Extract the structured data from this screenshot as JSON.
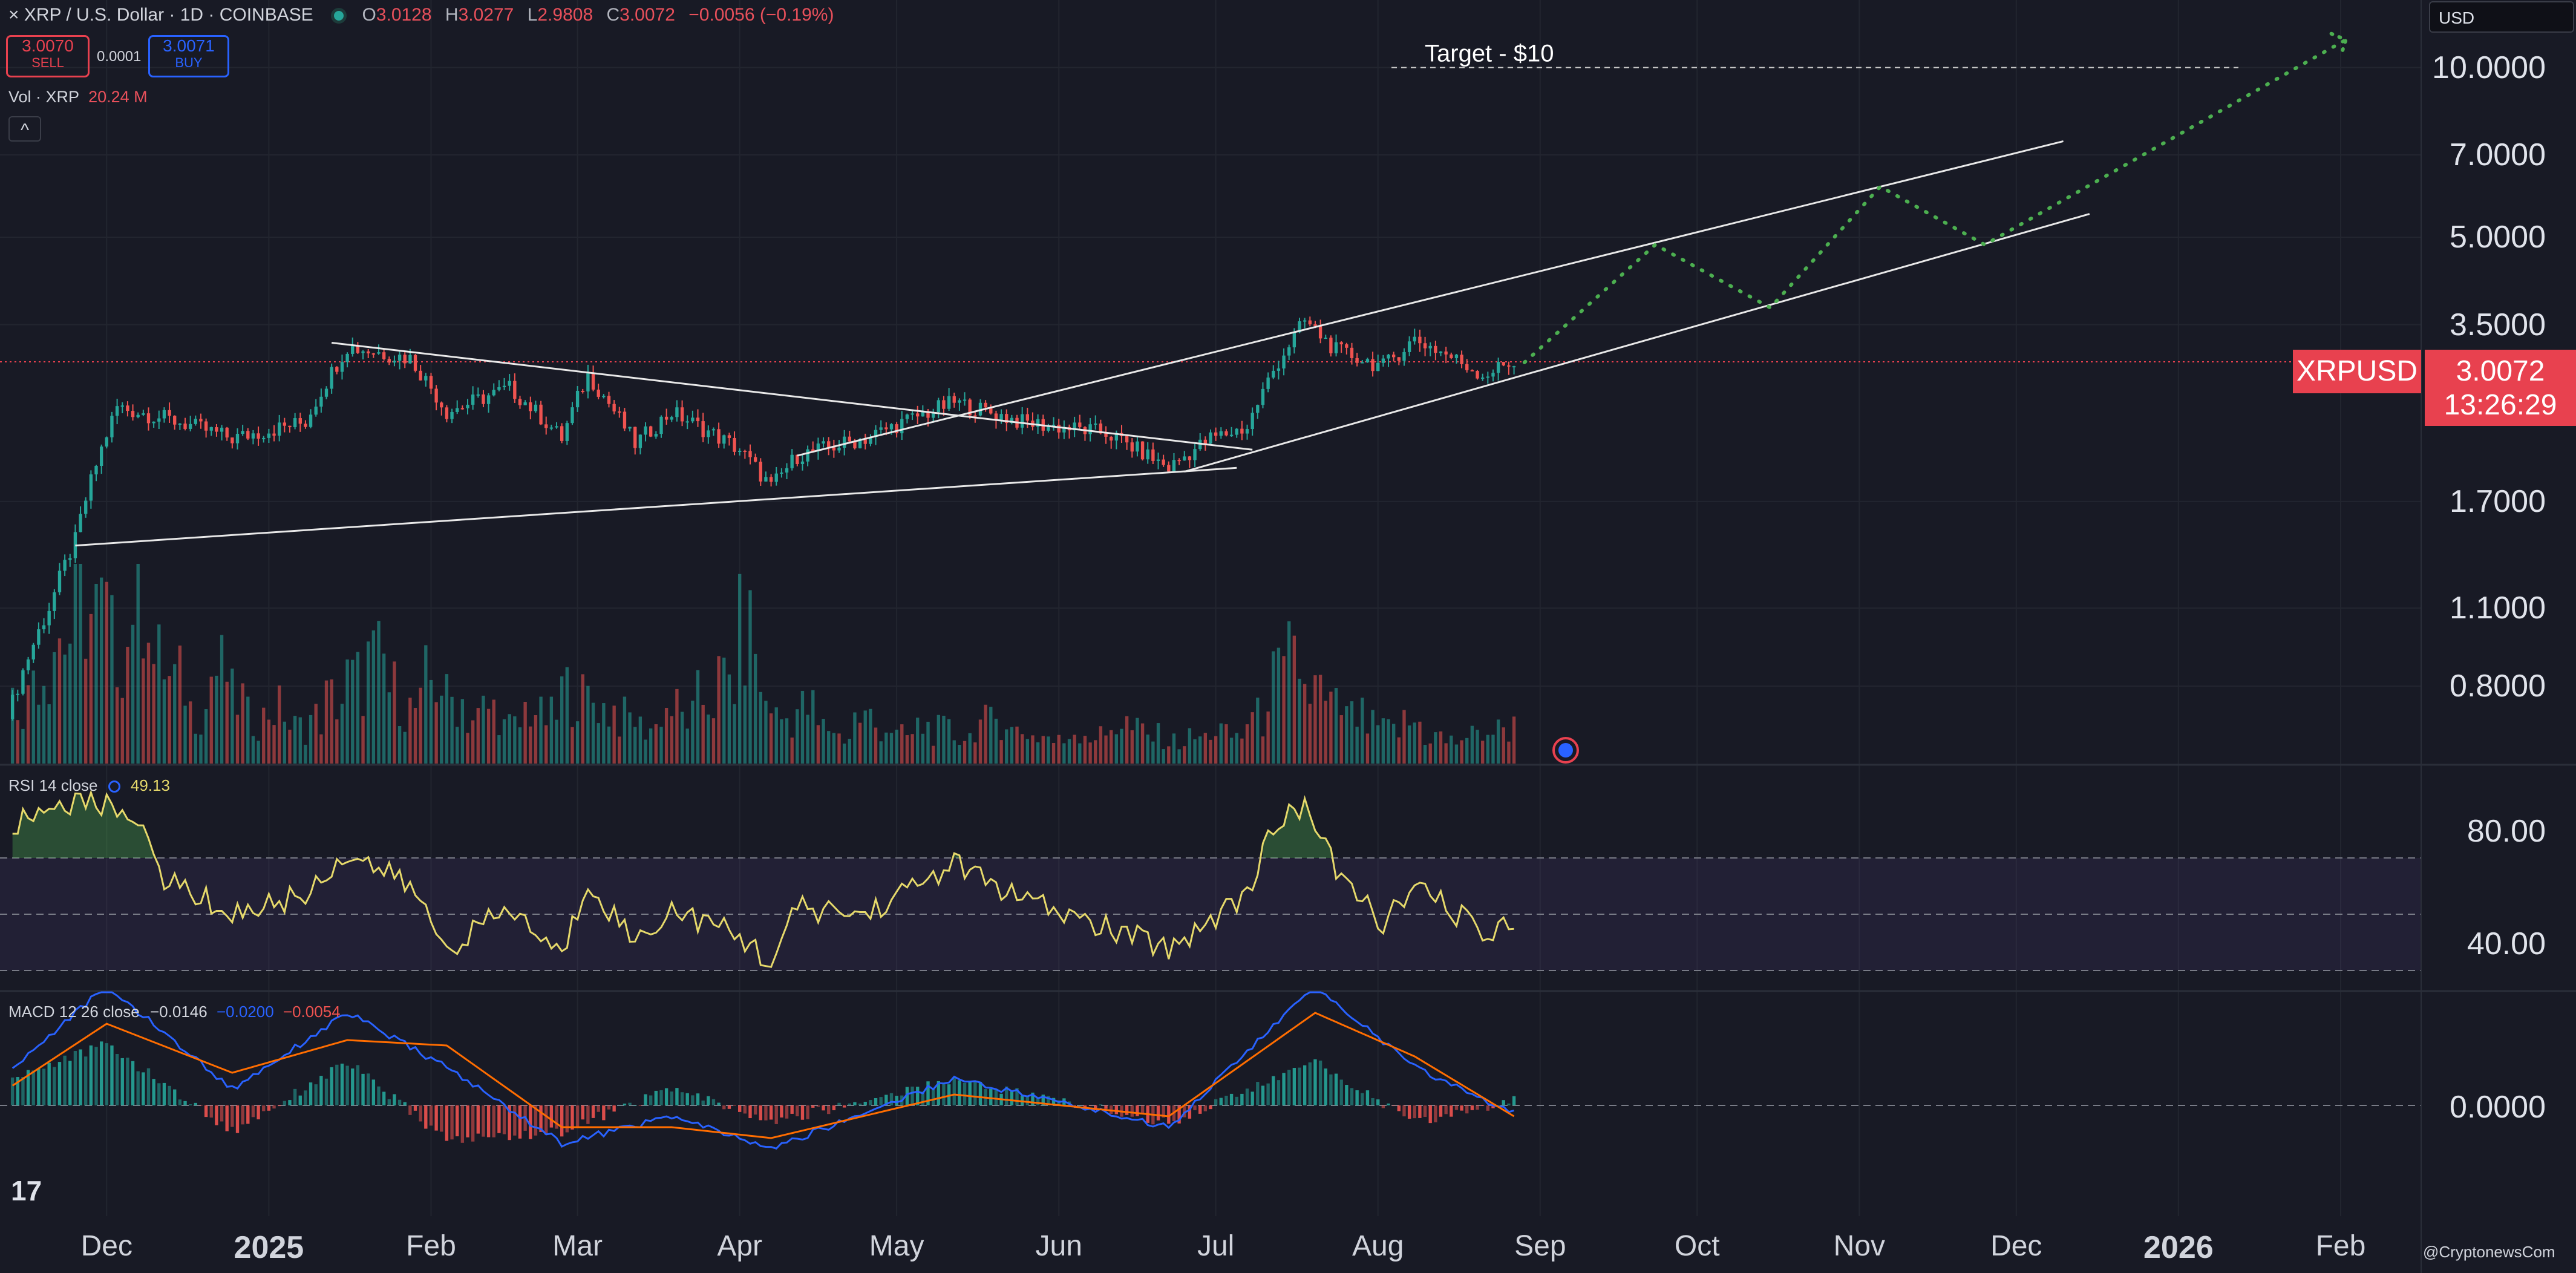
{
  "header": {
    "close_glyph": "×",
    "symbol_title": "XRP / U.S. Dollar · 1D · COINBASE",
    "ohlc": [
      {
        "k": "O",
        "v": "3.0128"
      },
      {
        "k": "H",
        "v": "3.0277"
      },
      {
        "k": "L",
        "v": "2.9808"
      },
      {
        "k": "C",
        "v": "3.0072"
      }
    ],
    "change": "−0.0056 (−0.19%)",
    "sell_price": "3.0070",
    "sell_label": "SELL",
    "spread": "0.0001",
    "buy_price": "3.0071",
    "buy_label": "BUY",
    "vol_label": "Vol · XRP",
    "vol_value": "20.24 M",
    "collapse_glyph": "^",
    "currency": "USD"
  },
  "price_axis": {
    "ticks": [
      "10.0000",
      "7.0000",
      "5.0000",
      "3.5000",
      "1.7000",
      "1.1000",
      "0.8000"
    ],
    "scale": "log",
    "last_symbol": "XRPUSD",
    "last_price": "3.0072",
    "countdown": "13:26:29"
  },
  "time_axis": {
    "ticks": [
      "Dec",
      "2025",
      "Feb",
      "Mar",
      "Apr",
      "May",
      "Jun",
      "Jul",
      "Aug",
      "Sep",
      "Oct",
      "Nov",
      "Dec",
      "2026",
      "Feb"
    ]
  },
  "rsi": {
    "label": "RSI 14 close",
    "value": "49.13",
    "ticks": [
      "80.00",
      "40.00"
    ],
    "upper_band": 70,
    "middle": 50,
    "lower_band": 30
  },
  "macd": {
    "label": "MACD 12 26 close",
    "macd_value": "−0.0146",
    "signal_value": "−0.0200",
    "hist_value": "−0.0054",
    "ticks": [
      "0.0000"
    ]
  },
  "annotation": {
    "target_text": "Target - $10",
    "target_price": 10
  },
  "watermark": "@CryptonewsCom",
  "logo_text": "17",
  "colors": {
    "background": "#181a25",
    "up": "#26a69a",
    "down": "#ef5350",
    "rsi_line": "#e6d96b",
    "macd_line": "#2962ff",
    "signal_line": "#ff6d00",
    "projection": "#4caf50",
    "trendline": "#e8e8e8",
    "last_price_tag": "#e8414f"
  },
  "chart_data": {
    "type": "candlestick",
    "title": "XRP / U.S. Dollar · 1D · COINBASE",
    "y_scale": "log",
    "ylim": [
      0.7,
      11.5
    ],
    "x_range": [
      "2024-11-12",
      "2026-02-15"
    ],
    "key_points": [
      {
        "date": "2024-11-12",
        "close": 0.7
      },
      {
        "date": "2024-11-20",
        "close": 1.1
      },
      {
        "date": "2024-11-25",
        "close": 1.45
      },
      {
        "date": "2024-12-03",
        "close": 2.5
      },
      {
        "date": "2024-12-15",
        "close": 2.35
      },
      {
        "date": "2024-12-25",
        "close": 2.2
      },
      {
        "date": "2025-01-08",
        "close": 2.35
      },
      {
        "date": "2025-01-16",
        "close": 3.2
      },
      {
        "date": "2025-01-28",
        "close": 3.05
      },
      {
        "date": "2025-02-04",
        "close": 2.45
      },
      {
        "date": "2025-02-16",
        "close": 2.7
      },
      {
        "date": "2025-02-26",
        "close": 2.2
      },
      {
        "date": "2025-03-03",
        "close": 2.85
      },
      {
        "date": "2025-03-12",
        "close": 2.15
      },
      {
        "date": "2025-03-19",
        "close": 2.45
      },
      {
        "date": "2025-04-01",
        "close": 2.1
      },
      {
        "date": "2025-04-07",
        "close": 1.8
      },
      {
        "date": "2025-04-12",
        "close": 2.05
      },
      {
        "date": "2025-04-25",
        "close": 2.2
      },
      {
        "date": "2025-05-12",
        "close": 2.55
      },
      {
        "date": "2025-05-25",
        "close": 2.35
      },
      {
        "date": "2025-06-10",
        "close": 2.25
      },
      {
        "date": "2025-06-22",
        "close": 1.95
      },
      {
        "date": "2025-06-30",
        "close": 2.2
      },
      {
        "date": "2025-07-07",
        "close": 2.3
      },
      {
        "date": "2025-07-12",
        "close": 2.9
      },
      {
        "date": "2025-07-18",
        "close": 3.55
      },
      {
        "date": "2025-07-24",
        "close": 3.15
      },
      {
        "date": "2025-08-02",
        "close": 2.95
      },
      {
        "date": "2025-08-08",
        "close": 3.3
      },
      {
        "date": "2025-08-14",
        "close": 3.1
      },
      {
        "date": "2025-08-21",
        "close": 2.85
      },
      {
        "date": "2025-08-27",
        "close": 3.01
      }
    ],
    "volume_bars": [
      0.35,
      0.55,
      0.7,
      0.9,
      0.8,
      0.65,
      1.0,
      0.55,
      0.45,
      0.3,
      0.5,
      0.35,
      0.25,
      0.3,
      0.2,
      0.25,
      0.35,
      0.45,
      0.55,
      0.4,
      0.3,
      0.45,
      0.35,
      0.25,
      0.3,
      0.2,
      0.3,
      0.25,
      0.4,
      0.35,
      0.3,
      0.25,
      0.2,
      0.3,
      0.25,
      0.35,
      0.45,
      0.7,
      0.35,
      0.25,
      0.3,
      0.2,
      0.15,
      0.25,
      0.2,
      0.15,
      0.2,
      0.18,
      0.15,
      0.22,
      0.25,
      0.18,
      0.15,
      0.12,
      0.18,
      0.15,
      0.22,
      0.18,
      0.15,
      0.12,
      0.14,
      0.18,
      0.15,
      0.25,
      0.45,
      0.55,
      0.4,
      0.3,
      0.25,
      0.2,
      0.18,
      0.22,
      0.15,
      0.12,
      0.15,
      0.18,
      0.2
    ],
    "rsi_points": [
      {
        "date": "2024-11-12",
        "v": 80
      },
      {
        "date": "2024-11-22",
        "v": 90
      },
      {
        "date": "2024-12-05",
        "v": 88
      },
      {
        "date": "2024-12-12",
        "v": 63
      },
      {
        "date": "2024-12-25",
        "v": 50
      },
      {
        "date": "2025-01-08",
        "v": 57
      },
      {
        "date": "2025-01-16",
        "v": 72
      },
      {
        "date": "2025-01-28",
        "v": 60
      },
      {
        "date": "2025-02-04",
        "v": 38
      },
      {
        "date": "2025-02-16",
        "v": 52
      },
      {
        "date": "2025-02-26",
        "v": 35
      },
      {
        "date": "2025-03-03",
        "v": 62
      },
      {
        "date": "2025-03-12",
        "v": 40
      },
      {
        "date": "2025-03-19",
        "v": 52
      },
      {
        "date": "2025-04-01",
        "v": 42
      },
      {
        "date": "2025-04-07",
        "v": 33
      },
      {
        "date": "2025-04-12",
        "v": 52
      },
      {
        "date": "2025-04-25",
        "v": 50
      },
      {
        "date": "2025-05-12",
        "v": 68
      },
      {
        "date": "2025-05-25",
        "v": 55
      },
      {
        "date": "2025-06-10",
        "v": 45
      },
      {
        "date": "2025-06-22",
        "v": 38
      },
      {
        "date": "2025-06-30",
        "v": 48
      },
      {
        "date": "2025-07-07",
        "v": 58
      },
      {
        "date": "2025-07-12",
        "v": 80
      },
      {
        "date": "2025-07-18",
        "v": 90
      },
      {
        "date": "2025-07-24",
        "v": 65
      },
      {
        "date": "2025-08-02",
        "v": 47
      },
      {
        "date": "2025-08-08",
        "v": 59
      },
      {
        "date": "2025-08-14",
        "v": 53
      },
      {
        "date": "2025-08-21",
        "v": 43
      },
      {
        "date": "2025-08-27",
        "v": 49
      }
    ],
    "macd_points": [
      {
        "date": "2024-11-12",
        "macd": 0.06,
        "signal": 0.03
      },
      {
        "date": "2024-12-01",
        "macd": 0.22,
        "signal": 0.15
      },
      {
        "date": "2024-12-25",
        "macd": 0.03,
        "signal": 0.06
      },
      {
        "date": "2025-01-16",
        "macd": 0.17,
        "signal": 0.12
      },
      {
        "date": "2025-02-04",
        "macd": 0.07,
        "signal": 0.11
      },
      {
        "date": "2025-02-26",
        "macd": -0.07,
        "signal": -0.04
      },
      {
        "date": "2025-03-19",
        "macd": -0.02,
        "signal": -0.04
      },
      {
        "date": "2025-04-07",
        "macd": -0.08,
        "signal": -0.06
      },
      {
        "date": "2025-05-12",
        "macd": 0.05,
        "signal": 0.02
      },
      {
        "date": "2025-06-22",
        "macd": -0.04,
        "signal": -0.02
      },
      {
        "date": "2025-07-20",
        "macd": 0.22,
        "signal": 0.17
      },
      {
        "date": "2025-08-08",
        "macd": 0.07,
        "signal": 0.09
      },
      {
        "date": "2025-08-27",
        "macd": -0.015,
        "signal": -0.02
      }
    ],
    "trendlines": [
      {
        "name": "lower-support",
        "from": {
          "date": "2024-11-25",
          "price": 1.42
        },
        "to": {
          "date": "2025-07-05",
          "price": 1.95
        }
      },
      {
        "name": "descending-resistance",
        "from": {
          "date": "2025-01-13",
          "price": 3.25
        },
        "to": {
          "date": "2025-07-08",
          "price": 2.1
        }
      },
      {
        "name": "channel-upper",
        "from": {
          "date": "2025-04-12",
          "price": 2.05
        },
        "to": {
          "date": "2025-12-10",
          "price": 7.4
        }
      },
      {
        "name": "channel-lower",
        "from": {
          "date": "2025-06-25",
          "price": 1.92
        },
        "to": {
          "date": "2025-12-15",
          "price": 5.5
        }
      }
    ],
    "projection": [
      {
        "date": "2025-08-29",
        "price": 3.0
      },
      {
        "date": "2025-09-23",
        "price": 4.85
      },
      {
        "date": "2025-10-15",
        "price": 3.75
      },
      {
        "date": "2025-11-05",
        "price": 6.15
      },
      {
        "date": "2025-11-25",
        "price": 4.85
      },
      {
        "date": "2026-02-02",
        "price": 11.2
      }
    ]
  }
}
